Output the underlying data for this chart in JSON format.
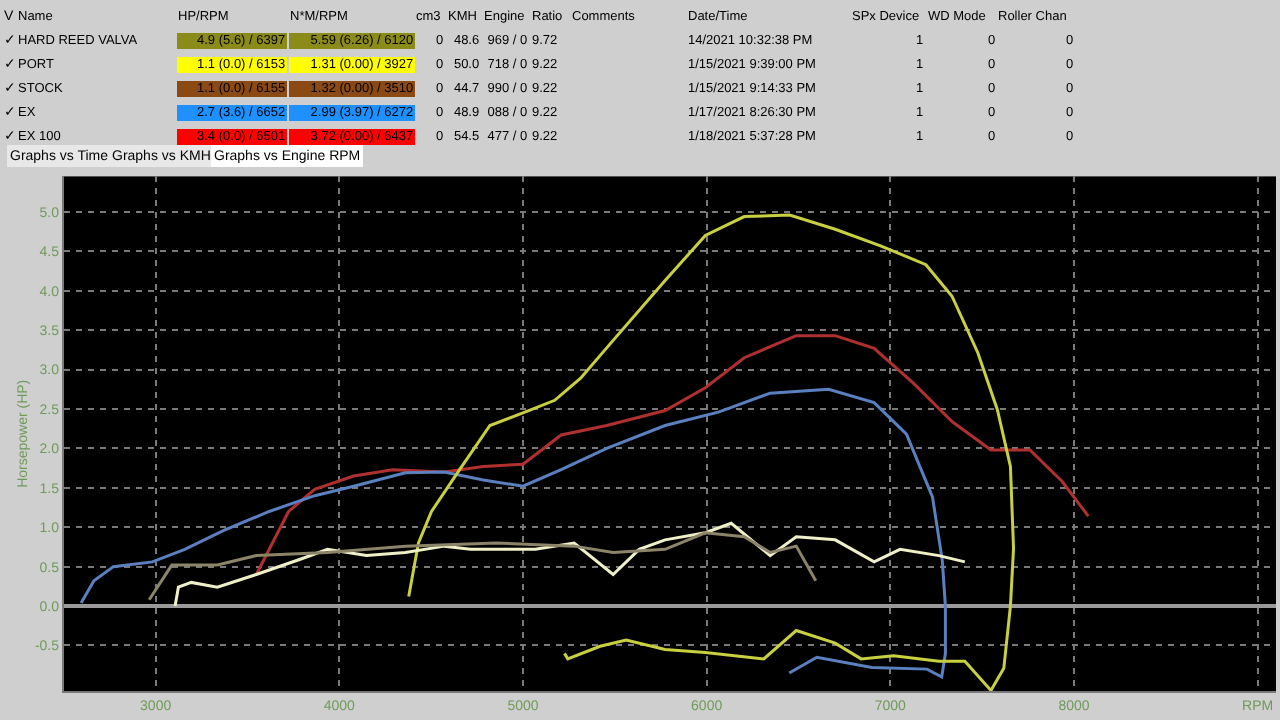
{
  "chart_data": [
    {
      "type": "other",
      "categories": [
        "V",
        "Name",
        "HP/RPM",
        "N*M/RPM",
        "cm3",
        "KMH",
        "Engine",
        "Ratio",
        "Comments",
        "Date/Time",
        "SPx Device",
        "WD Mode",
        "Roller Chan"
      ],
      "cells": [
        [
          "✓",
          "HARD REED VALVA",
          "4.9 (5.6) / 6397",
          "5.59 (6.26) / 6120",
          "0",
          "48.6",
          "969 / 0",
          "9.72",
          null,
          "14/2021 10:32:38 PM",
          "1",
          "0",
          "0"
        ],
        [
          "✓",
          "PORT",
          "1.1 (0.0) / 6153",
          "1.31 (0.00) / 3927",
          "0",
          "50.0",
          "718 / 0",
          "9.22",
          null,
          "1/15/2021 9:39:00 PM",
          "1",
          "0",
          "0"
        ],
        [
          "✓",
          "STOCK",
          "1.1 (0.0) / 6155",
          "1.32 (0.00) / 3510",
          "0",
          "44.7",
          "990 / 0",
          "9.22",
          null,
          "1/15/2021 9:14:33 PM",
          "1",
          "0",
          "0"
        ],
        [
          "✓",
          "EX",
          "2.7 (3.6) / 6652",
          "2.99 (3.97) / 6272",
          "0",
          "48.9",
          "088 / 0",
          "9.22",
          null,
          "1/17/2021 8:26:30 PM",
          "1",
          "0",
          "0"
        ],
        [
          "✓",
          "EX 100",
          "3.4 (0.0) / 6501",
          "3.72 (0.00) / 6437",
          "0",
          "54.5",
          "477 / 0",
          "9.22",
          null,
          "1/18/2021 5:37:28 PM",
          "1",
          "0",
          "0"
        ]
      ],
      "colors": [
        "#8b8b1a",
        "#ffff00",
        "#8b4a13",
        "#1e90ff",
        "#ff0000"
      ],
      "annotations": [
        "Graphs vs Time",
        "Graphs vs KMH",
        "Graphs vs Engine RPM"
      ]
    },
    {
      "type": "line",
      "ylabel": "Horsepower (HP)",
      "xlim": [
        2500,
        9100
      ],
      "ylim": [
        -1.08,
        5.45
      ],
      "xticks": [
        3000,
        4000,
        5000,
        6000,
        7000,
        8000,
        {
          "value": 9000,
          "label": "RPM"
        }
      ],
      "yticks": [
        -0.5,
        {
          "value": 0,
          "label": "0.0"
        },
        0.5,
        {
          "value": 1,
          "label": "1.0"
        },
        1.5,
        {
          "value": 2,
          "label": "2.0"
        },
        2.5,
        {
          "value": 3,
          "label": "3.0"
        },
        3.5,
        {
          "value": 4,
          "label": "4.0"
        },
        4.5,
        {
          "value": 5,
          "label": "5.0"
        }
      ],
      "grid": true,
      "marker": "none",
      "line_style": "solid",
      "series": [
        {
          "color": "#b03030",
          "x": [
            3548,
            3724,
            3866,
            4078,
            4290,
            4572,
            4784,
            5000,
            5208,
            5456,
            5774,
            5993,
            6205,
            6488,
            6700,
            6912,
            7124,
            7336,
            7548,
            7760,
            7936,
            8078
          ],
          "values": [
            0.4,
            1.2,
            1.48,
            1.65,
            1.73,
            1.7,
            1.77,
            1.8,
            2.17,
            2.29,
            2.48,
            2.77,
            3.15,
            3.43,
            3.43,
            3.27,
            2.83,
            2.34,
            1.98,
            1.98,
            1.58,
            1.14
          ]
        },
        {
          "color": "#5a80c0",
          "x": [
            2594,
            2664,
            2770,
            2982,
            3159,
            3371,
            3618,
            3866,
            4078,
            4360,
            4572,
            4784,
            5000,
            5208,
            5456,
            5774,
            6064,
            6346,
            6664,
            6912,
            7088,
            7230,
            7283,
            7300,
            7300,
            7280,
            7200,
            6900,
            6600,
            6450
          ],
          "values": [
            0.04,
            0.32,
            0.5,
            0.56,
            0.72,
            0.96,
            1.2,
            1.4,
            1.52,
            1.69,
            1.7,
            1.6,
            1.52,
            1.73,
            2.0,
            2.29,
            2.46,
            2.7,
            2.75,
            2.58,
            2.18,
            1.38,
            0.58,
            0,
            -0.6,
            -0.9,
            -0.8,
            -0.78,
            -0.65,
            -0.85
          ]
        },
        {
          "color": "#c8d040",
          "x": [
            4378,
            4431,
            4502,
            4643,
            4820,
            5000,
            5173,
            5314,
            5491,
            5774,
            5993,
            6205,
            6452,
            6700,
            6947,
            7194,
            7336,
            7477,
            7583,
            7654,
            7671,
            7654,
            7618,
            7548,
            7406,
            7265,
            7018,
            6841,
            6700,
            6488,
            6311,
            5993,
            5774,
            5562,
            5420,
            5244,
            5226
          ],
          "values": [
            0.12,
            0.8,
            1.2,
            1.69,
            2.29,
            2.45,
            2.61,
            2.89,
            3.37,
            4.13,
            4.7,
            4.94,
            4.96,
            4.78,
            4.57,
            4.33,
            3.93,
            3.21,
            2.49,
            1.77,
            0.73,
            0,
            -0.79,
            -1.07,
            -0.7,
            -0.7,
            -0.63,
            -0.67,
            -0.47,
            -0.31,
            -0.67,
            -0.59,
            -0.55,
            -0.43,
            -0.51,
            -0.67,
            -0.6
          ]
        },
        {
          "color": "#f0f0c8",
          "x": [
            3106,
            3124,
            3194,
            3336,
            3548,
            3795,
            3936,
            4148,
            4360,
            4572,
            4714,
            4855,
            5067,
            5279,
            5491,
            5633,
            5774,
            5993,
            6134,
            6346,
            6488,
            6700,
            6912,
            7053,
            7265,
            7406
          ],
          "values": [
            0,
            0.24,
            0.3,
            0.24,
            0.4,
            0.6,
            0.72,
            0.64,
            0.68,
            0.76,
            0.72,
            0.72,
            0.72,
            0.8,
            0.4,
            0.72,
            0.84,
            0.93,
            1.05,
            0.64,
            0.88,
            0.84,
            0.56,
            0.72,
            0.64,
            0.56
          ]
        },
        {
          "color": "#8c8468",
          "x": [
            2965,
            3088,
            3336,
            3548,
            3936,
            4360,
            4855,
            5279,
            5491,
            5774,
            5993,
            6205,
            6346,
            6488,
            6594
          ],
          "values": [
            0.08,
            0.52,
            0.52,
            0.64,
            0.68,
            0.76,
            0.8,
            0.76,
            0.68,
            0.72,
            0.93,
            0.88,
            0.68,
            0.76,
            0.32
          ]
        }
      ]
    }
  ]
}
